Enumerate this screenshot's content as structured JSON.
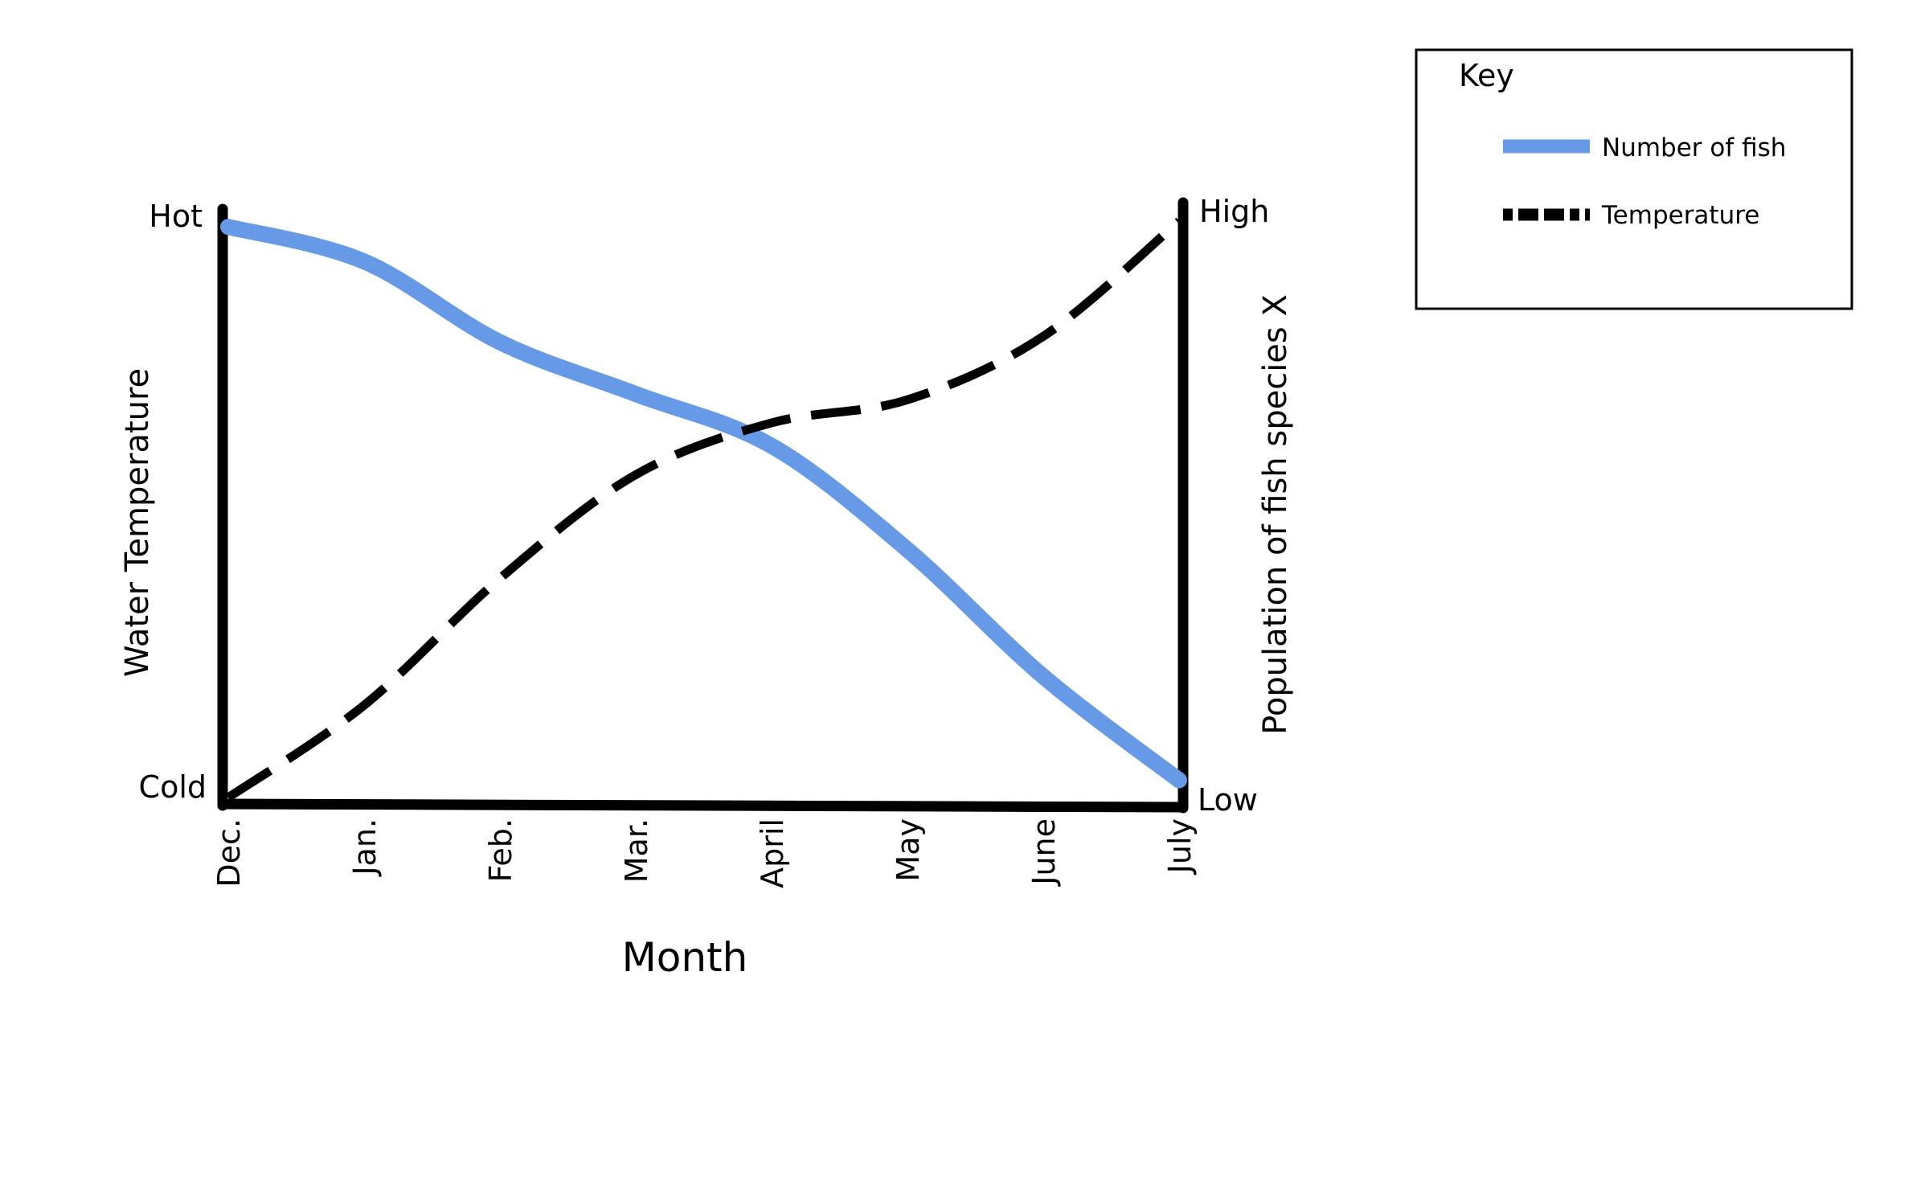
{
  "chart_data": {
    "type": "line",
    "title": "",
    "xlabel": "Month",
    "ylabel_left": "Water Temperature",
    "ylabel_right": "Population of fish species X",
    "categories": [
      "Dec.",
      "Jan.",
      "Feb.",
      "Mar.",
      "April",
      "May",
      "June",
      "July"
    ],
    "left_axis": {
      "top_label": "Hot",
      "bottom_label": "Cold",
      "ylim": [
        0,
        100
      ]
    },
    "right_axis": {
      "top_label": "High",
      "bottom_label": "Low",
      "ylim": [
        0,
        100
      ]
    },
    "legend": {
      "title": "Key",
      "placement": "top-right",
      "entries": [
        {
          "name": "Number of fish",
          "style": "solid",
          "color": "#6699e6"
        },
        {
          "name": "Temperature",
          "style": "dashed",
          "color": "#000000"
        }
      ]
    },
    "series": [
      {
        "name": "Number of fish",
        "axis": "right",
        "style": "solid",
        "color": "#6699e6",
        "values": [
          99,
          93,
          79,
          70,
          61,
          43,
          21,
          3
        ]
      },
      {
        "name": "Temperature",
        "axis": "left",
        "style": "dashed",
        "color": "#000000",
        "values": [
          0,
          16,
          38,
          56,
          65,
          69,
          80,
          100
        ]
      }
    ],
    "grid": false
  }
}
